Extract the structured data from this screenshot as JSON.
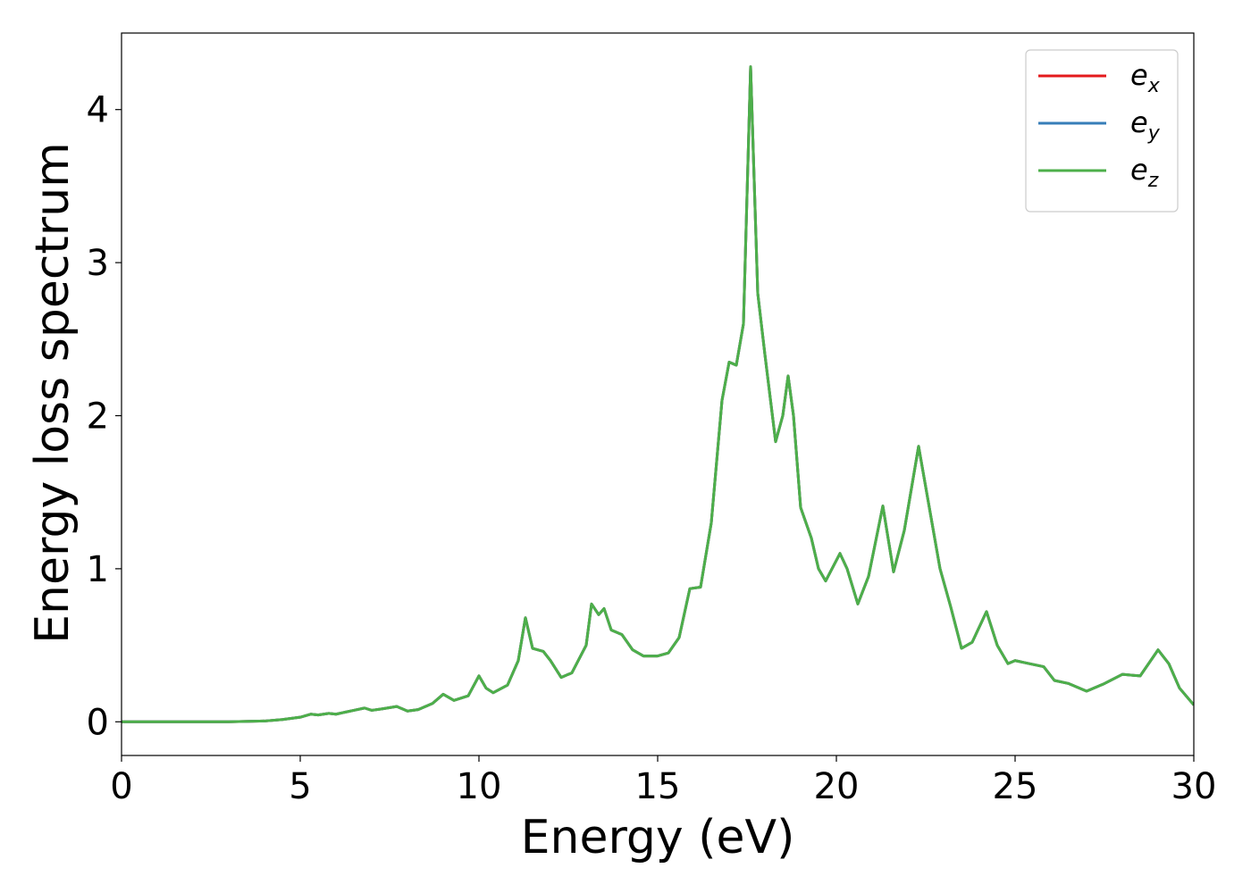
{
  "chart_data": {
    "type": "line",
    "xlabel": "Energy (eV)",
    "ylabel": "Energy loss spectrum",
    "x": [
      0,
      1,
      2,
      3,
      4,
      4.5,
      5,
      5.3,
      5.5,
      5.8,
      6,
      6.3,
      6.5,
      6.8,
      7,
      7.3,
      7.7,
      8,
      8.3,
      8.7,
      9,
      9.3,
      9.7,
      10,
      10.2,
      10.4,
      10.8,
      11.1,
      11.3,
      11.5,
      11.8,
      12,
      12.3,
      12.6,
      13,
      13.15,
      13.35,
      13.5,
      13.7,
      14,
      14.3,
      14.6,
      15,
      15.3,
      15.6,
      15.9,
      16.2,
      16.5,
      16.8,
      17,
      17.2,
      17.4,
      17.6,
      17.8,
      18,
      18.3,
      18.5,
      18.65,
      18.8,
      19,
      19.3,
      19.5,
      19.7,
      20.1,
      20.3,
      20.6,
      20.9,
      21.3,
      21.6,
      21.9,
      22.3,
      22.6,
      22.9,
      23.2,
      23.5,
      23.8,
      24.2,
      24.5,
      24.8,
      25,
      25.4,
      25.8,
      26.1,
      26.5,
      27,
      27.5,
      28,
      28.5,
      29,
      29.3,
      29.6,
      30
    ],
    "series": [
      {
        "name": "e_x",
        "color": "#e41a1c",
        "values": [
          0,
          0,
          0,
          0,
          0.005,
          0.015,
          0.03,
          0.05,
          0.045,
          0.055,
          0.05,
          0.065,
          0.075,
          0.09,
          0.075,
          0.085,
          0.1,
          0.07,
          0.08,
          0.12,
          0.18,
          0.14,
          0.17,
          0.3,
          0.22,
          0.19,
          0.24,
          0.4,
          0.68,
          0.48,
          0.46,
          0.4,
          0.29,
          0.32,
          0.5,
          0.77,
          0.7,
          0.74,
          0.6,
          0.57,
          0.47,
          0.43,
          0.43,
          0.45,
          0.55,
          0.87,
          0.88,
          1.3,
          2.1,
          2.35,
          2.33,
          2.6,
          4.28,
          2.8,
          2.4,
          1.83,
          2.0,
          2.26,
          2.0,
          1.4,
          1.2,
          1.0,
          0.92,
          1.1,
          1.0,
          0.77,
          0.95,
          1.41,
          0.98,
          1.25,
          1.8,
          1.4,
          1.0,
          0.75,
          0.48,
          0.52,
          0.72,
          0.5,
          0.38,
          0.4,
          0.38,
          0.36,
          0.27,
          0.25,
          0.2,
          0.25,
          0.31,
          0.3,
          0.47,
          0.38,
          0.22,
          0.11
        ]
      },
      {
        "name": "e_y",
        "color": "#377eb8",
        "values": [
          0,
          0,
          0,
          0,
          0.005,
          0.015,
          0.03,
          0.05,
          0.045,
          0.055,
          0.05,
          0.065,
          0.075,
          0.09,
          0.075,
          0.085,
          0.1,
          0.07,
          0.08,
          0.12,
          0.18,
          0.14,
          0.17,
          0.3,
          0.22,
          0.19,
          0.24,
          0.4,
          0.68,
          0.48,
          0.46,
          0.4,
          0.29,
          0.32,
          0.5,
          0.77,
          0.7,
          0.74,
          0.6,
          0.57,
          0.47,
          0.43,
          0.43,
          0.45,
          0.55,
          0.87,
          0.88,
          1.3,
          2.1,
          2.35,
          2.33,
          2.6,
          4.28,
          2.8,
          2.4,
          1.83,
          2.0,
          2.26,
          2.0,
          1.4,
          1.2,
          1.0,
          0.92,
          1.1,
          1.0,
          0.77,
          0.95,
          1.41,
          0.98,
          1.25,
          1.8,
          1.4,
          1.0,
          0.75,
          0.48,
          0.52,
          0.72,
          0.5,
          0.38,
          0.4,
          0.38,
          0.36,
          0.27,
          0.25,
          0.2,
          0.25,
          0.31,
          0.3,
          0.47,
          0.38,
          0.22,
          0.11
        ]
      },
      {
        "name": "e_z",
        "color": "#4daf4a",
        "values": [
          0,
          0,
          0,
          0,
          0.005,
          0.015,
          0.03,
          0.05,
          0.045,
          0.055,
          0.05,
          0.065,
          0.075,
          0.09,
          0.075,
          0.085,
          0.1,
          0.07,
          0.08,
          0.12,
          0.18,
          0.14,
          0.17,
          0.3,
          0.22,
          0.19,
          0.24,
          0.4,
          0.68,
          0.48,
          0.46,
          0.4,
          0.29,
          0.32,
          0.5,
          0.77,
          0.7,
          0.74,
          0.6,
          0.57,
          0.47,
          0.43,
          0.43,
          0.45,
          0.55,
          0.87,
          0.88,
          1.3,
          2.1,
          2.35,
          2.33,
          2.6,
          4.28,
          2.8,
          2.4,
          1.83,
          2.0,
          2.26,
          2.0,
          1.4,
          1.2,
          1.0,
          0.92,
          1.1,
          1.0,
          0.77,
          0.95,
          1.41,
          0.98,
          1.25,
          1.8,
          1.4,
          1.0,
          0.75,
          0.48,
          0.52,
          0.72,
          0.5,
          0.38,
          0.4,
          0.38,
          0.36,
          0.27,
          0.25,
          0.2,
          0.25,
          0.31,
          0.3,
          0.47,
          0.38,
          0.22,
          0.11
        ]
      }
    ],
    "xlim": [
      0,
      30
    ],
    "ylim": [
      -0.22,
      4.5
    ],
    "xticks": [
      0,
      5,
      10,
      15,
      20,
      25,
      30
    ],
    "yticks": [
      0,
      1,
      2,
      3,
      4
    ],
    "legend": "upper right"
  }
}
